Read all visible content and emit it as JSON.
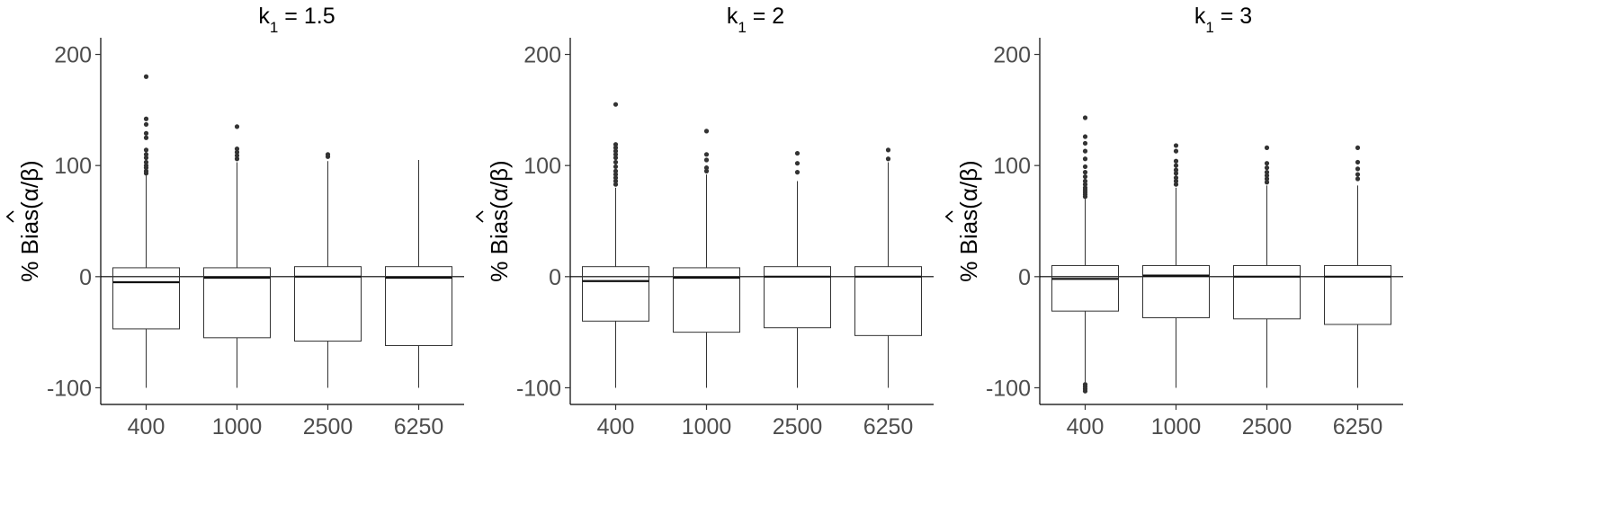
{
  "chart_data": [
    {
      "type": "box",
      "title": {
        "main": "k",
        "sub": "1",
        "rest": " = 1.5"
      },
      "ylabel": {
        "prefix": "% Bias(",
        "expr": "α/β",
        "suffix": ")"
      },
      "ylim": [
        -115,
        215
      ],
      "yticks": [
        {
          "value": 200,
          "label": "200"
        },
        {
          "value": 100,
          "label": "100"
        },
        {
          "value": 0,
          "label": "0"
        },
        {
          "value": -100,
          "label": "-100"
        }
      ],
      "categories": [
        "400",
        "1000",
        "2500",
        "6250"
      ],
      "hline": 0,
      "boxes": [
        {
          "whisker_low": -100,
          "q1": -47,
          "median": -5,
          "q3": 8,
          "whisker_high": 91,
          "outliers": [
            93,
            95,
            98,
            100,
            103,
            107,
            110,
            114,
            125,
            129,
            137,
            142,
            180
          ]
        },
        {
          "whisker_low": -100,
          "q1": -55,
          "median": -1,
          "q3": 8,
          "whisker_high": 103,
          "outliers": [
            106,
            109,
            112,
            115,
            135
          ]
        },
        {
          "whisker_low": -100,
          "q1": -58,
          "median": 0,
          "q3": 9,
          "whisker_high": 104,
          "outliers": [
            108,
            110
          ]
        },
        {
          "whisker_low": -100,
          "q1": -62,
          "median": -1,
          "q3": 9,
          "whisker_high": 105,
          "outliers": []
        }
      ]
    },
    {
      "type": "box",
      "title": {
        "main": "k",
        "sub": "1",
        "rest": " = 2"
      },
      "ylabel": {
        "prefix": "% Bias(",
        "expr": "α/β",
        "suffix": ")"
      },
      "ylim": [
        -115,
        215
      ],
      "yticks": [
        {
          "value": 200,
          "label": "200"
        },
        {
          "value": 100,
          "label": "100"
        },
        {
          "value": 0,
          "label": "0"
        },
        {
          "value": -100,
          "label": "-100"
        }
      ],
      "categories": [
        "400",
        "1000",
        "2500",
        "6250"
      ],
      "hline": 0,
      "boxes": [
        {
          "whisker_low": -100,
          "q1": -40,
          "median": -4,
          "q3": 9,
          "whisker_high": 80,
          "outliers": [
            83,
            86,
            89,
            92,
            95,
            99,
            103,
            107,
            110,
            113,
            116,
            119,
            155
          ]
        },
        {
          "whisker_low": -100,
          "q1": -50,
          "median": -1,
          "q3": 8,
          "whisker_high": 92,
          "outliers": [
            95,
            98,
            105,
            110,
            131
          ]
        },
        {
          "whisker_low": -100,
          "q1": -46,
          "median": 0,
          "q3": 9,
          "whisker_high": 86,
          "outliers": [
            94,
            102,
            111
          ]
        },
        {
          "whisker_low": -100,
          "q1": -53,
          "median": 0,
          "q3": 9,
          "whisker_high": 103,
          "outliers": [
            106,
            114
          ]
        }
      ]
    },
    {
      "type": "box",
      "title": {
        "main": "k",
        "sub": "1",
        "rest": " = 3"
      },
      "ylabel": {
        "prefix": "% Bias(",
        "expr": "α/β",
        "suffix": ")"
      },
      "ylim": [
        -115,
        215
      ],
      "yticks": [
        {
          "value": 200,
          "label": "200"
        },
        {
          "value": 100,
          "label": "100"
        },
        {
          "value": 0,
          "label": "0"
        },
        {
          "value": -100,
          "label": "-100"
        }
      ],
      "categories": [
        "400",
        "1000",
        "2500",
        "6250"
      ],
      "hline": 0,
      "boxes": [
        {
          "whisker_low": -95,
          "q1": -31,
          "median": -2,
          "q3": 10,
          "whisker_high": 70,
          "outliers": [
            72,
            74,
            76,
            78,
            80,
            83,
            86,
            90,
            94,
            99,
            106,
            113,
            120,
            126,
            143,
            -97,
            -99,
            -101,
            -103
          ]
        },
        {
          "whisker_low": -100,
          "q1": -37,
          "median": 1,
          "q3": 10,
          "whisker_high": 80,
          "outliers": [
            83,
            86,
            89,
            93,
            96,
            100,
            104,
            113,
            118
          ]
        },
        {
          "whisker_low": -100,
          "q1": -38,
          "median": 0,
          "q3": 10,
          "whisker_high": 82,
          "outliers": [
            85,
            88,
            91,
            94,
            98,
            102,
            116
          ]
        },
        {
          "whisker_low": -100,
          "q1": -43,
          "median": 0,
          "q3": 10,
          "whisker_high": 82,
          "outliers": [
            88,
            92,
            97,
            103,
            116
          ]
        }
      ]
    }
  ]
}
